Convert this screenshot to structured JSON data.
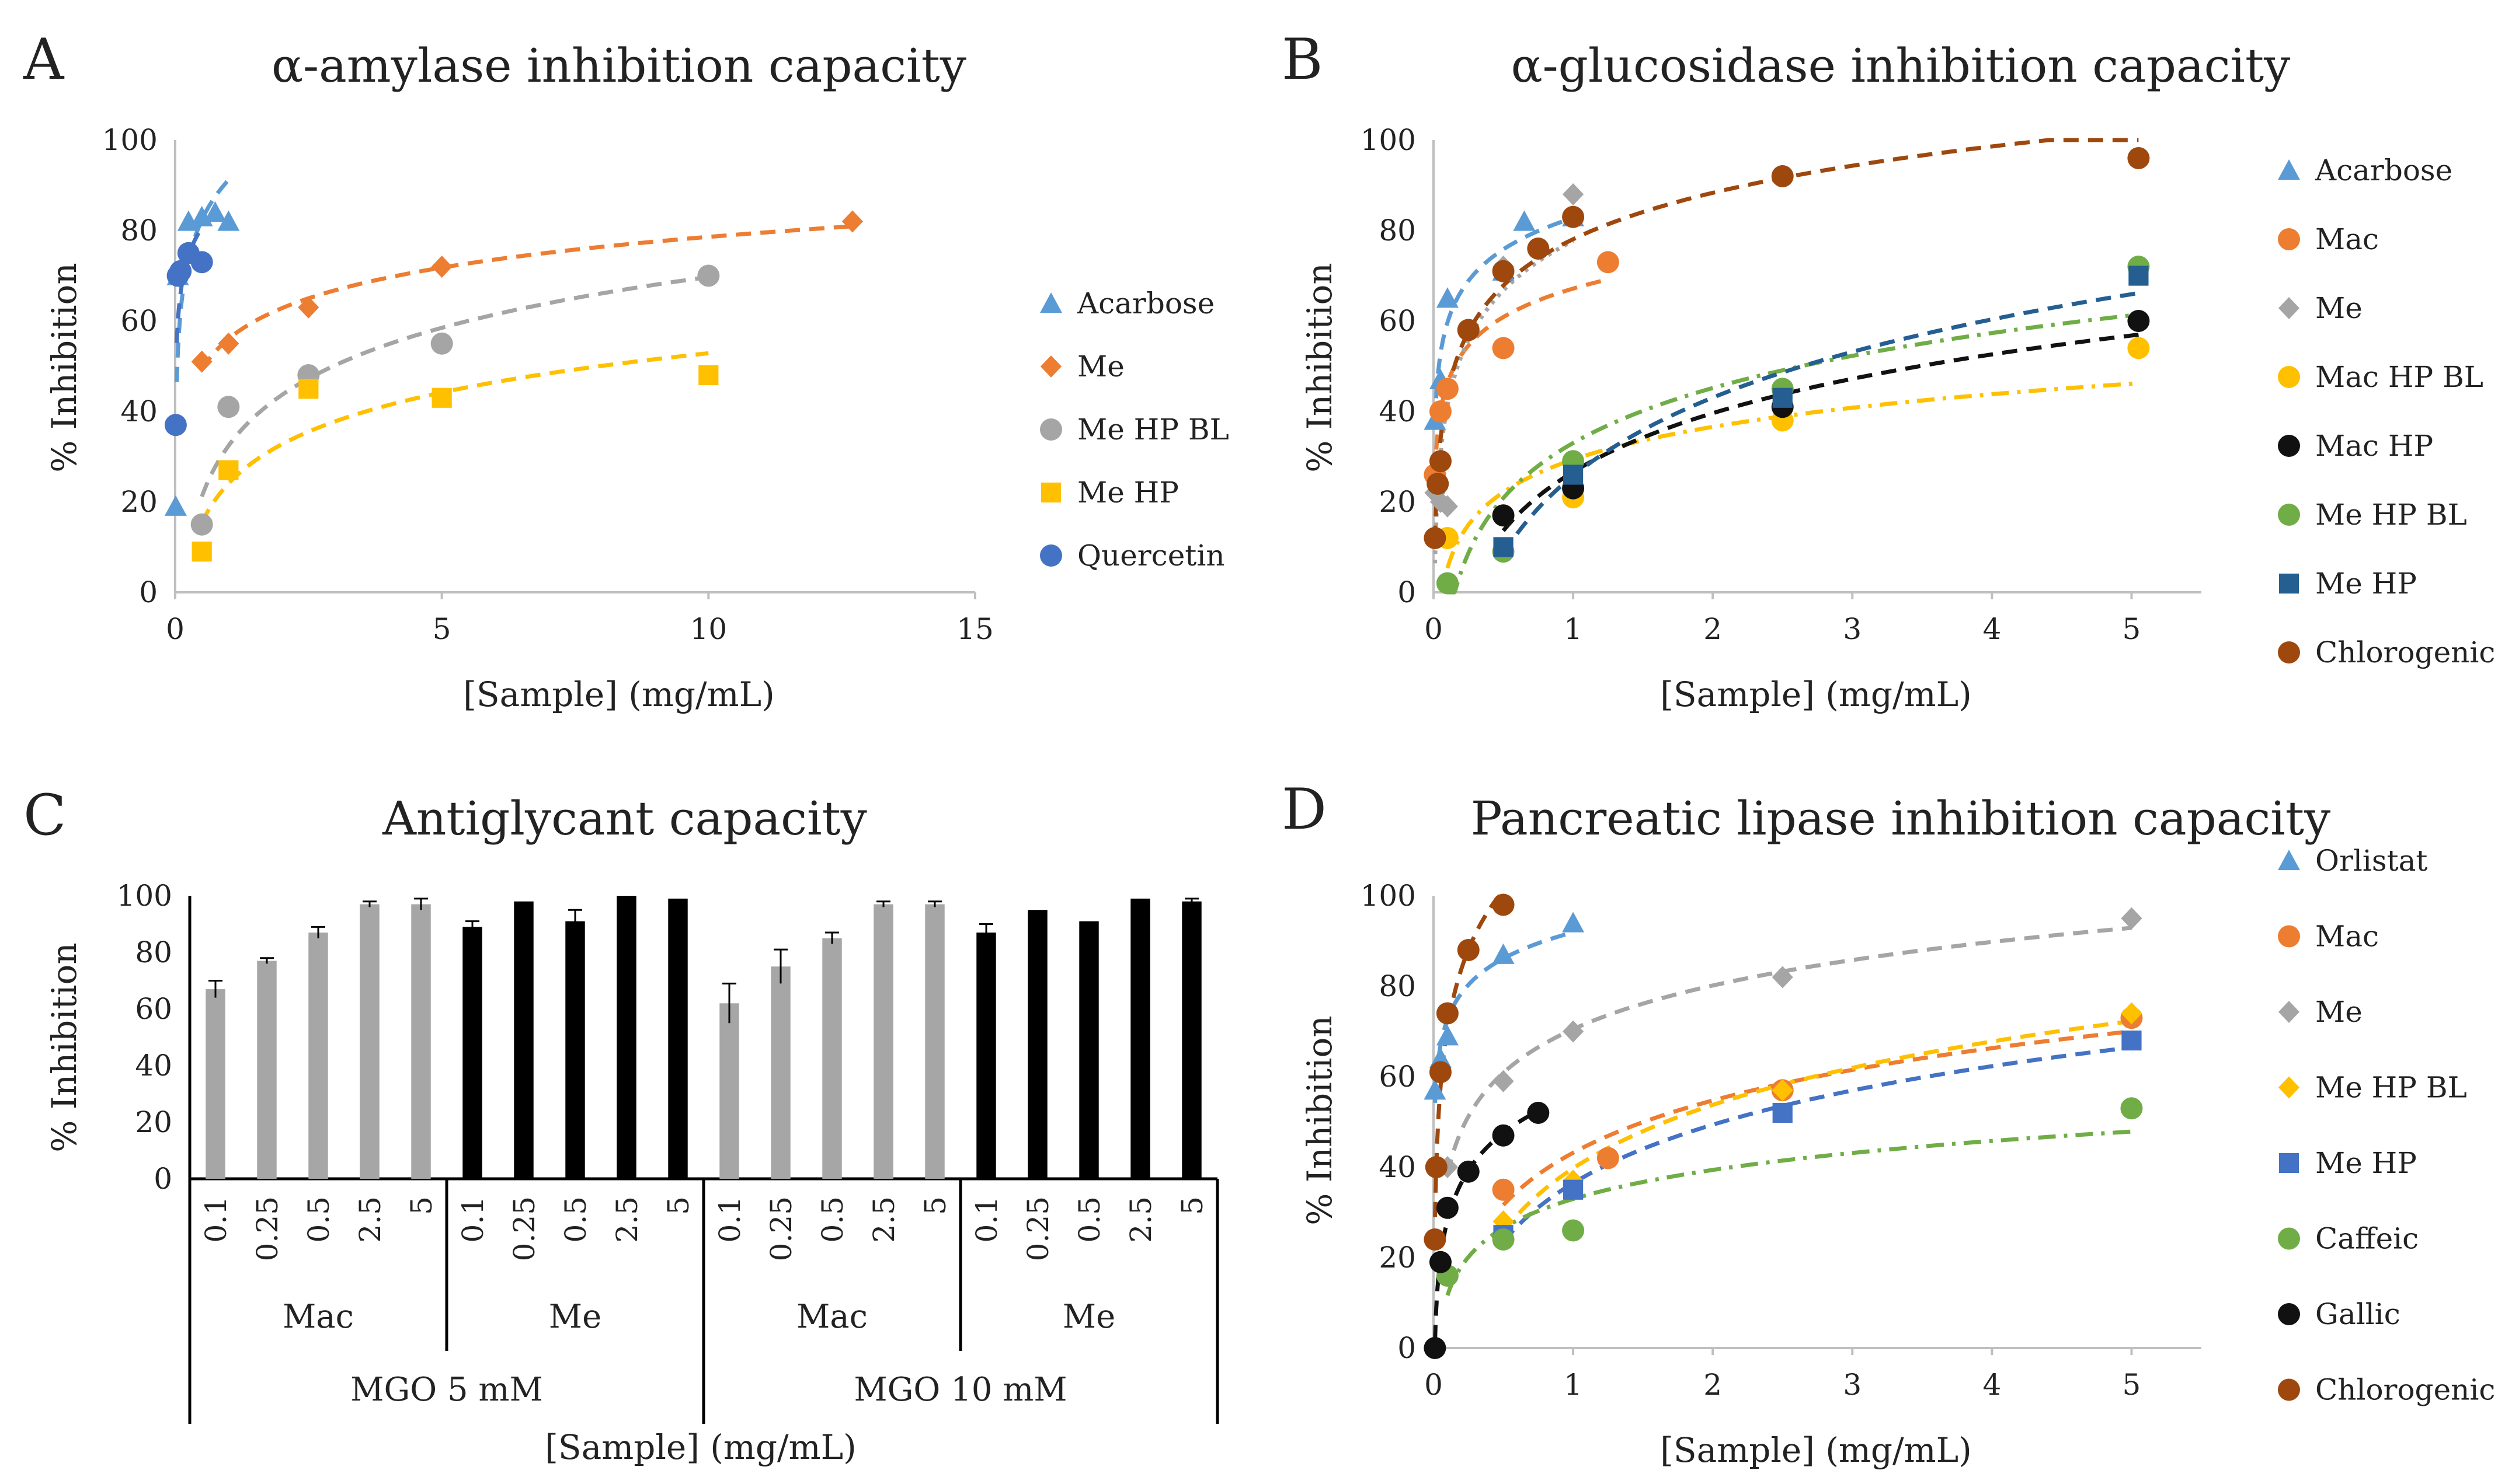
{
  "chart_data": [
    {
      "id": "A",
      "panel_label": "A",
      "type": "scatter",
      "title": "α-amylase inhibition capacity",
      "xlabel": "[Sample] (mg/mL)",
      "ylabel": "% Inhibition",
      "xlim": [
        0,
        15
      ],
      "ylim": [
        0,
        100
      ],
      "xticks": [
        0,
        5,
        10,
        15
      ],
      "yticks": [
        0,
        20,
        40,
        60,
        80,
        100
      ],
      "series": [
        {
          "name": "Acarbose",
          "color": "#5b9bd5",
          "marker": "triangle",
          "line": "dash",
          "fit": "log",
          "x": [
            0.01,
            0.05,
            0.25,
            0.5,
            0.75,
            1.0
          ],
          "y": [
            19,
            70,
            82,
            83,
            84,
            82
          ]
        },
        {
          "name": "Me",
          "color": "#ed7d31",
          "marker": "diamond",
          "line": "dash",
          "fit": "log",
          "x": [
            0.5,
            1.0,
            2.5,
            5.0,
            12.7
          ],
          "y": [
            51,
            55,
            63,
            72,
            82
          ]
        },
        {
          "name": "Me HP BL",
          "color": "#a5a5a5",
          "marker": "circle",
          "line": "dash",
          "fit": "log",
          "x": [
            0.5,
            1.0,
            2.5,
            5.0,
            10.0
          ],
          "y": [
            15,
            41,
            48,
            55,
            70
          ]
        },
        {
          "name": "Me HP",
          "color": "#ffc000",
          "marker": "square",
          "line": "dash",
          "fit": "log",
          "x": [
            0.5,
            1.0,
            2.5,
            5.0,
            10.0
          ],
          "y": [
            9,
            27,
            45,
            43,
            48
          ]
        },
        {
          "name": "Quercetin",
          "color": "#4472c4",
          "marker": "circle",
          "line": "dash",
          "fit": "log",
          "x": [
            0.01,
            0.05,
            0.1,
            0.25,
            0.5
          ],
          "y": [
            37,
            70,
            71,
            75,
            73
          ]
        }
      ]
    },
    {
      "id": "B",
      "panel_label": "B",
      "type": "scatter",
      "title": "α-glucosidase inhibition capacity",
      "xlabel": "[Sample] (mg/mL)",
      "ylabel": "% Inhibition",
      "xlim": [
        0,
        5.5
      ],
      "ylim": [
        0,
        100
      ],
      "xticks": [
        0,
        1,
        2,
        3,
        4,
        5
      ],
      "yticks": [
        0,
        20,
        40,
        60,
        80,
        100
      ],
      "series": [
        {
          "name": "Acarbose",
          "color": "#5b9bd5",
          "marker": "triangle",
          "line": "dash",
          "fit": "log",
          "x": [
            0.01,
            0.05,
            0.1,
            0.5,
            0.65,
            1.0
          ],
          "y": [
            38,
            47,
            65,
            71,
            82,
            83
          ]
        },
        {
          "name": "Mac",
          "color": "#ed7d31",
          "marker": "circle",
          "line": "dash",
          "fit": "log",
          "x": [
            0.01,
            0.05,
            0.1,
            0.25,
            0.5,
            1.25
          ],
          "y": [
            26,
            40,
            45,
            58,
            54,
            73
          ]
        },
        {
          "name": "Me",
          "color": "#a5a5a5",
          "marker": "diamond",
          "line": "dot",
          "fit": "log",
          "x": [
            0.01,
            0.05,
            0.1,
            0.5,
            1.0
          ],
          "y": [
            22,
            20,
            19,
            72,
            88
          ]
        },
        {
          "name": "Mac HP BL",
          "color": "#ffc000",
          "marker": "circle",
          "line": "dashdot",
          "fit": "log",
          "x": [
            0.1,
            0.5,
            1.0,
            2.5,
            5.05
          ],
          "y": [
            12,
            17,
            21,
            38,
            54
          ]
        },
        {
          "name": "Mac HP",
          "color": "#111111",
          "marker": "circle",
          "line": "dash",
          "fit": "log",
          "x": [
            0.5,
            1.0,
            2.5,
            5.05
          ],
          "y": [
            17,
            23,
            41,
            60
          ]
        },
        {
          "name": "Me HP BL",
          "color": "#70ad47",
          "marker": "circle",
          "line": "dashdot",
          "fit": "log",
          "x": [
            0.1,
            0.5,
            1.0,
            2.5,
            5.05
          ],
          "y": [
            2,
            9,
            29,
            45,
            72
          ]
        },
        {
          "name": "Me HP",
          "color": "#255e91",
          "marker": "square",
          "line": "dash",
          "fit": "log",
          "x": [
            0.5,
            1.0,
            2.5,
            5.05
          ],
          "y": [
            10,
            26,
            43,
            70
          ]
        },
        {
          "name": "Chlorogenic",
          "color": "#9e480e",
          "marker": "circle",
          "line": "dash",
          "fit": "log",
          "x": [
            0.01,
            0.03,
            0.05,
            0.25,
            0.5,
            0.75,
            1.0,
            2.5,
            5.05
          ],
          "y": [
            12,
            24,
            29,
            58,
            71,
            76,
            83,
            92,
            96
          ]
        }
      ]
    },
    {
      "id": "C",
      "panel_label": "C",
      "type": "bar",
      "title": "Antiglycant capacity",
      "xlabel": "[Sample] (mg/mL)",
      "ylabel": "% Inhibition",
      "ylim": [
        0,
        100
      ],
      "yticks": [
        0,
        20,
        40,
        60,
        80,
        100
      ],
      "categories": [
        "0.1",
        "0.25",
        "0.5",
        "2.5",
        "5",
        "0.1",
        "0.25",
        "0.5",
        "2.5",
        "5",
        "0.1",
        "0.25",
        "0.5",
        "2.5",
        "5",
        "0.1",
        "0.25",
        "0.5",
        "2.5",
        "5"
      ],
      "values": [
        67,
        77,
        87,
        97,
        97,
        89,
        98,
        91,
        100,
        99,
        62,
        75,
        85,
        97,
        97,
        87,
        95,
        91,
        99,
        98
      ],
      "errors": [
        3,
        1,
        2,
        1,
        2,
        2,
        0,
        4,
        0,
        0,
        7,
        6,
        2,
        1,
        1,
        3,
        0,
        0,
        0,
        1
      ],
      "bar_colors": [
        "#a6a6a6",
        "#a6a6a6",
        "#a6a6a6",
        "#a6a6a6",
        "#a6a6a6",
        "#000000",
        "#000000",
        "#000000",
        "#000000",
        "#000000",
        "#a6a6a6",
        "#a6a6a6",
        "#a6a6a6",
        "#a6a6a6",
        "#a6a6a6",
        "#000000",
        "#000000",
        "#000000",
        "#000000",
        "#000000"
      ],
      "groups": [
        "Mac",
        "Me",
        "Mac",
        "Me"
      ],
      "supergroups": [
        "MGO 5 mM",
        "MGO 10 mM"
      ]
    },
    {
      "id": "D",
      "panel_label": "D",
      "type": "scatter",
      "title": "Pancreatic lipase inhibition capacity",
      "xlabel": "[Sample] (mg/mL)",
      "ylabel": "% Inhibition",
      "xlim": [
        0,
        5.5
      ],
      "ylim": [
        0,
        100
      ],
      "xticks": [
        0,
        1,
        2,
        3,
        4,
        5
      ],
      "yticks": [
        0,
        20,
        40,
        60,
        80,
        100
      ],
      "series": [
        {
          "name": "Orlistat",
          "color": "#5b9bd5",
          "marker": "triangle",
          "line": "dash",
          "fit": "log",
          "x": [
            0.01,
            0.05,
            0.1,
            0.5,
            1.0
          ],
          "y": [
            57,
            64,
            69,
            87,
            94
          ]
        },
        {
          "name": "Mac",
          "color": "#ed7d31",
          "marker": "circle",
          "line": "dash",
          "fit": "log",
          "x": [
            0.5,
            1.25,
            2.5,
            5.0
          ],
          "y": [
            35,
            42,
            57,
            73
          ]
        },
        {
          "name": "Me",
          "color": "#a5a5a5",
          "marker": "diamond",
          "line": "dash",
          "fit": "log",
          "x": [
            0.1,
            0.5,
            1.0,
            2.5,
            5.0
          ],
          "y": [
            40,
            59,
            70,
            82,
            95
          ]
        },
        {
          "name": "Me HP BL",
          "color": "#ffc000",
          "marker": "diamond",
          "line": "dash",
          "fit": "log",
          "x": [
            0.5,
            1.0,
            2.5,
            5.0
          ],
          "y": [
            28,
            37,
            57,
            74
          ]
        },
        {
          "name": "Me HP",
          "color": "#4472c4",
          "marker": "square",
          "line": "dash",
          "fit": "log",
          "x": [
            0.5,
            1.0,
            2.5,
            5.0
          ],
          "y": [
            25,
            35,
            52,
            68
          ]
        },
        {
          "name": "Caffeic",
          "color": "#70ad47",
          "marker": "circle",
          "line": "dashdot",
          "fit": "log",
          "x": [
            0.1,
            0.5,
            1.0,
            5.0
          ],
          "y": [
            16,
            24,
            26,
            53
          ]
        },
        {
          "name": "Gallic",
          "color": "#111111",
          "marker": "circle",
          "line": "dash",
          "fit": "log",
          "x": [
            0.01,
            0.05,
            0.1,
            0.25,
            0.5,
            0.75
          ],
          "y": [
            0,
            19,
            31,
            39,
            47,
            52
          ]
        },
        {
          "name": "Chlorogenic",
          "color": "#9e480e",
          "marker": "circle",
          "line": "dash",
          "fit": "log",
          "x": [
            0.01,
            0.02,
            0.05,
            0.1,
            0.25,
            0.5
          ],
          "y": [
            24,
            40,
            61,
            74,
            88,
            98
          ]
        }
      ]
    }
  ]
}
